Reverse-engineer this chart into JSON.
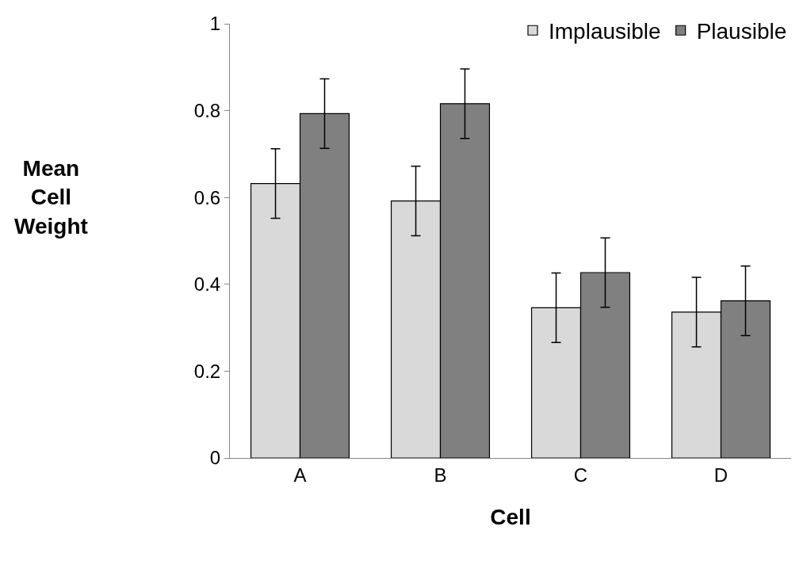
{
  "chart_data": {
    "type": "bar",
    "xlabel": "Cell",
    "ylabel": "Mean\nCell\nWeight",
    "categories": [
      "A",
      "B",
      "C",
      "D"
    ],
    "series": [
      {
        "name": "Implausible",
        "color": "#d9d9d9",
        "values": [
          0.632,
          0.592,
          0.346,
          0.336
        ],
        "errors": [
          0.08,
          0.08,
          0.08,
          0.08
        ]
      },
      {
        "name": "Plausible",
        "color": "#808080",
        "values": [
          0.793,
          0.816,
          0.427,
          0.362
        ],
        "errors": [
          0.08,
          0.08,
          0.08,
          0.08
        ]
      }
    ],
    "ylim": [
      0,
      1
    ],
    "yticks": [
      0,
      0.2,
      0.4,
      0.6,
      0.8,
      1
    ],
    "legend": "top right"
  }
}
